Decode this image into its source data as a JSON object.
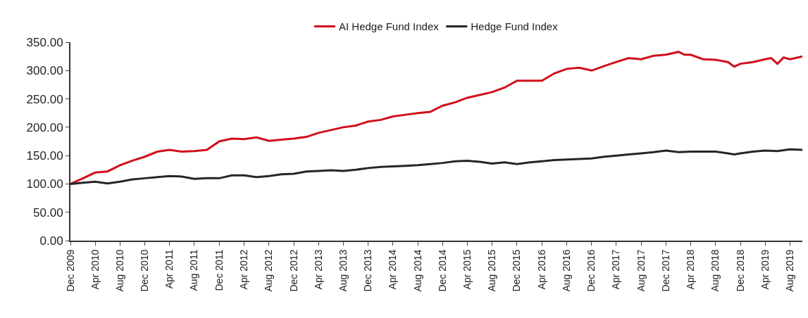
{
  "chart_data": {
    "type": "line",
    "xlim": [
      "2009-12",
      "2019-10"
    ],
    "xticks": [
      {
        "value": "2009-12",
        "label": "Dec 2009"
      },
      {
        "value": "2010-04",
        "label": "Apr 2010"
      },
      {
        "value": "2010-08",
        "label": "Aug 2010"
      },
      {
        "value": "2010-12",
        "label": "Dec 2010"
      },
      {
        "value": "2011-04",
        "label": "Apr 2011"
      },
      {
        "value": "2011-08",
        "label": "Aug 2011"
      },
      {
        "value": "2011-12",
        "label": "Dec 2011"
      },
      {
        "value": "2012-04",
        "label": "Apr 2012"
      },
      {
        "value": "2012-08",
        "label": "Aug 2012"
      },
      {
        "value": "2012-12",
        "label": "Dec 2012"
      },
      {
        "value": "2013-04",
        "label": "Apr 2013"
      },
      {
        "value": "2013-08",
        "label": "Aug 2013"
      },
      {
        "value": "2013-12",
        "label": "Dec 2013"
      },
      {
        "value": "2014-04",
        "label": "Apr 2014"
      },
      {
        "value": "2014-08",
        "label": "Aug 2014"
      },
      {
        "value": "2014-12",
        "label": "Dec 2014"
      },
      {
        "value": "2015-04",
        "label": "Apr 2015"
      },
      {
        "value": "2015-08",
        "label": "Aug 2015"
      },
      {
        "value": "2015-12",
        "label": "Dec 2015"
      },
      {
        "value": "2016-04",
        "label": "Apr 2016"
      },
      {
        "value": "2016-08",
        "label": "Aug 2016"
      },
      {
        "value": "2016-12",
        "label": "Dec 2016"
      },
      {
        "value": "2017-04",
        "label": "Apr 2017"
      },
      {
        "value": "2017-08",
        "label": "Aug 2017"
      },
      {
        "value": "2017-12",
        "label": "Dec 2017"
      },
      {
        "value": "2018-04",
        "label": "Apr 2018"
      },
      {
        "value": "2018-08",
        "label": "Aug 2018"
      },
      {
        "value": "2018-12",
        "label": "Dec 2018"
      },
      {
        "value": "2019-04",
        "label": "Apr 2019"
      },
      {
        "value": "2019-08",
        "label": "Aug 2019"
      }
    ],
    "ylim": [
      0,
      350
    ],
    "yticks": [
      {
        "value": 0,
        "label": "0.00"
      },
      {
        "value": 50,
        "label": "50.00"
      },
      {
        "value": 100,
        "label": "100.00"
      },
      {
        "value": 150,
        "label": "150.00"
      },
      {
        "value": 200,
        "label": "200.00"
      },
      {
        "value": 250,
        "label": "250.00"
      },
      {
        "value": 300,
        "label": "300.00"
      },
      {
        "value": 350,
        "label": "350.00"
      }
    ],
    "legend": "top",
    "series": [
      {
        "name": "AI Hedge Fund Index",
        "color": "#d0101b",
        "x": [
          "2009-12",
          "2010-02",
          "2010-04",
          "2010-06",
          "2010-08",
          "2010-10",
          "2010-12",
          "2011-02",
          "2011-04",
          "2011-06",
          "2011-08",
          "2011-10",
          "2011-12",
          "2012-02",
          "2012-04",
          "2012-06",
          "2012-08",
          "2012-10",
          "2012-12",
          "2013-02",
          "2013-04",
          "2013-06",
          "2013-08",
          "2013-10",
          "2013-12",
          "2014-02",
          "2014-04",
          "2014-06",
          "2014-08",
          "2014-10",
          "2014-12",
          "2015-02",
          "2015-04",
          "2015-06",
          "2015-08",
          "2015-10",
          "2015-12",
          "2016-02",
          "2016-04",
          "2016-06",
          "2016-08",
          "2016-10",
          "2016-12",
          "2017-02",
          "2017-04",
          "2017-06",
          "2017-08",
          "2017-10",
          "2017-12",
          "2018-02",
          "2018-03",
          "2018-04",
          "2018-06",
          "2018-08",
          "2018-10",
          "2018-11",
          "2018-12",
          "2019-02",
          "2019-04",
          "2019-05",
          "2019-06",
          "2019-07",
          "2019-08",
          "2019-10"
        ],
        "values": [
          100,
          110,
          120,
          122,
          133,
          141,
          148,
          157,
          160,
          157,
          158,
          160,
          175,
          180,
          179,
          182,
          176,
          178,
          180,
          183,
          190,
          195,
          200,
          203,
          210,
          213,
          219,
          222,
          225,
          227,
          238,
          244,
          252,
          257,
          262,
          270,
          282,
          282,
          282,
          295,
          303,
          305,
          300,
          308,
          315,
          322,
          320,
          326,
          328,
          333,
          328,
          328,
          320,
          319,
          315,
          307,
          312,
          315,
          320,
          322,
          312,
          323,
          320,
          325
        ]
      },
      {
        "name": "Hedge Fund Index",
        "color": "#262626",
        "x": [
          "2009-12",
          "2010-02",
          "2010-04",
          "2010-06",
          "2010-08",
          "2010-10",
          "2010-12",
          "2011-02",
          "2011-04",
          "2011-06",
          "2011-08",
          "2011-10",
          "2011-12",
          "2012-02",
          "2012-04",
          "2012-06",
          "2012-08",
          "2012-10",
          "2012-12",
          "2013-02",
          "2013-04",
          "2013-06",
          "2013-08",
          "2013-10",
          "2013-12",
          "2014-02",
          "2014-04",
          "2014-06",
          "2014-08",
          "2014-10",
          "2014-12",
          "2015-02",
          "2015-04",
          "2015-06",
          "2015-08",
          "2015-10",
          "2015-12",
          "2016-02",
          "2016-04",
          "2016-06",
          "2016-08",
          "2016-10",
          "2016-12",
          "2017-02",
          "2017-04",
          "2017-06",
          "2017-08",
          "2017-10",
          "2017-12",
          "2018-02",
          "2018-04",
          "2018-06",
          "2018-08",
          "2018-10",
          "2018-11",
          "2018-12",
          "2019-02",
          "2019-04",
          "2019-06",
          "2019-08",
          "2019-10"
        ],
        "values": [
          100,
          102,
          104,
          101,
          104,
          108,
          110,
          112,
          114,
          113,
          109,
          110,
          110,
          115,
          115,
          112,
          114,
          117,
          118,
          122,
          123,
          124,
          123,
          125,
          128,
          130,
          131,
          132,
          133,
          135,
          137,
          140,
          141,
          139,
          136,
          138,
          135,
          138,
          140,
          142,
          143,
          144,
          145,
          148,
          150,
          152,
          154,
          156,
          159,
          156,
          157,
          157,
          157,
          154,
          152,
          154,
          157,
          159,
          158,
          161,
          160
        ]
      }
    ]
  }
}
